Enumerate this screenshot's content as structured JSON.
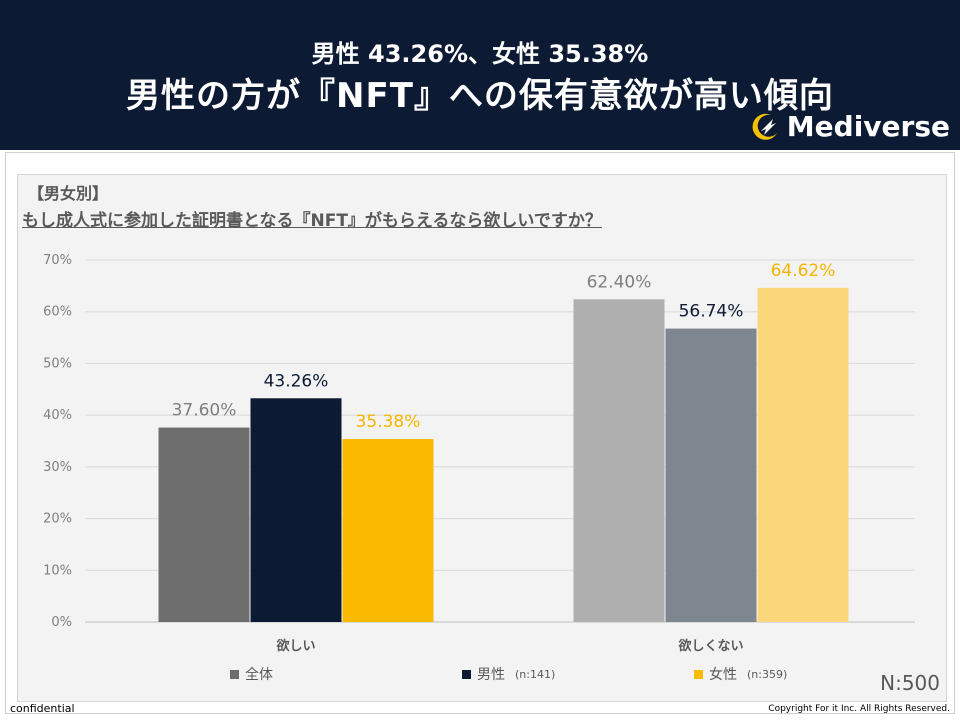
{
  "header": {
    "subtitle": "男性 43.26%、女性 35.38%",
    "title": "男性の方が『NFT』への保有意欲が高い傾向",
    "brand": "Mediverse",
    "brand_icon": "rocket-moon-icon"
  },
  "question": {
    "tag": "【男女別】",
    "text": "もし成人式に参加した証明書となる『NFT』がもらえるなら欲しいですか？"
  },
  "chart_data": {
    "type": "bar",
    "categories": [
      "欲しい",
      "欲しくない"
    ],
    "series": [
      {
        "name": "全体",
        "n": "",
        "values": [
          37.6,
          62.4
        ],
        "labels": [
          "37.60%",
          "62.40%"
        ],
        "colors": [
          "#6e6e6e",
          "#afafaf"
        ],
        "label_colors": [
          "#7f7f7f",
          "#7f7f7f"
        ]
      },
      {
        "name": "男性",
        "n": "(n:141)",
        "values": [
          43.26,
          56.74
        ],
        "labels": [
          "43.26%",
          "56.74%"
        ],
        "colors": [
          "#0d1a33",
          "#7e8690"
        ],
        "label_colors": [
          "#0d1a33",
          "#0d1a33"
        ]
      },
      {
        "name": "女性",
        "n": "(n:359)",
        "values": [
          35.38,
          64.62
        ],
        "labels": [
          "35.38%",
          "64.62%"
        ],
        "colors": [
          "#fbb900",
          "#f9d77a"
        ],
        "label_colors": [
          "#f5b400",
          "#f5b400"
        ]
      }
    ],
    "yticks": [
      "0%",
      "10%",
      "20%",
      "30%",
      "40%",
      "50%",
      "60%",
      "70%"
    ],
    "ylim": [
      0,
      70
    ],
    "legend_position": "bottom",
    "legend_colors": [
      "#6e6e6e",
      "#0d1a33",
      "#fbb900"
    ]
  },
  "sample": "N:500",
  "footer": {
    "left": "confidential",
    "right": "Copyright For it Inc. All Rights Reserved."
  }
}
